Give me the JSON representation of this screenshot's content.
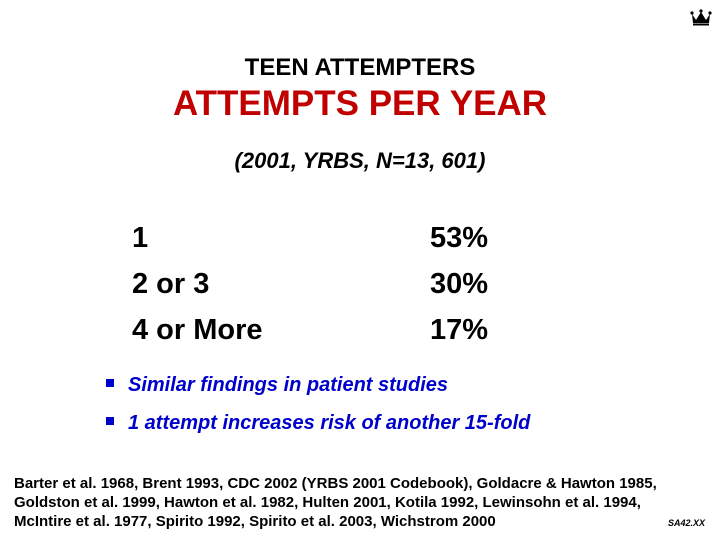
{
  "header": {
    "title_line1": "TEEN ATTEMPTERS",
    "title_line2": "ATTEMPTS PER YEAR",
    "subtitle": "(2001, YRBS, N=13, 601)",
    "title_color": "#c00000"
  },
  "table": {
    "rows": [
      {
        "label": "1",
        "value": "53%"
      },
      {
        "label": "2 or 3",
        "value": "30%"
      },
      {
        "label": "4 or More",
        "value": "17%"
      }
    ]
  },
  "bullets": {
    "items": [
      "Similar findings in patient studies",
      "1 attempt increases risk of another 15-fold"
    ],
    "color": "#0000cc"
  },
  "references": "Barter et al. 1968, Brent 1993, CDC 2002 (YRBS 2001 Codebook), Goldacre & Hawton 1985, Goldston et al. 1999, Hawton et al. 1982, Hulten 2001, Kotila 1992, Lewinsohn et al. 1994, McIntire et al. 1977, Spirito 1992, Spirito et al. 2003, Wichstrom 2000",
  "slide_number": "SA42.XX",
  "logo_icon": "crown-icon"
}
